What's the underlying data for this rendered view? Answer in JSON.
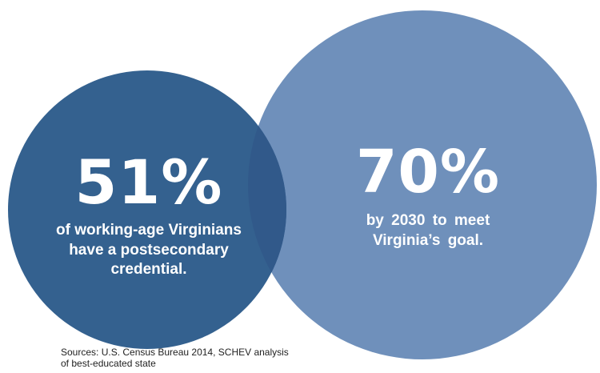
{
  "colors": {
    "left_circle": "#34618f",
    "right_circle": "#6f90bb",
    "overlap": "#31598a",
    "text": "#ffffff",
    "sources_text": "#222222"
  },
  "stats": [
    {
      "value": "51%",
      "caption_lines": [
        "of working-age Virginians",
        "have a postsecondary",
        "credential."
      ]
    },
    {
      "value": "70%",
      "caption_lines": [
        "by 2030 to meet",
        "Virginia’s goal."
      ]
    }
  ],
  "sources": {
    "lines": [
      "Sources: U.S. Census Bureau 2014, SCHEV analysis",
      "of best-educated state"
    ]
  }
}
